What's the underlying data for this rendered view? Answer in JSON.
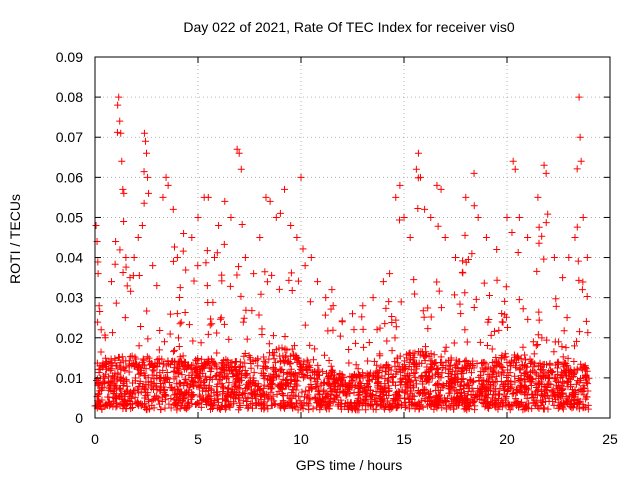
{
  "chart_data": {
    "type": "scatter",
    "title": "Day 022 of 2021, Rate Of TEC Index for receiver vis0",
    "xlabel": "GPS time / hours",
    "ylabel": "ROTI / TECUs",
    "xlim": [
      0,
      25
    ],
    "ylim": [
      0,
      0.09
    ],
    "x_ticks": [
      0,
      5,
      10,
      15,
      20,
      25
    ],
    "y_ticks": [
      0,
      0.01,
      0.02,
      0.03,
      0.04,
      0.05,
      0.06,
      0.07,
      0.08,
      0.09
    ],
    "x_tick_labels": [
      "0",
      "5",
      "10",
      "15",
      "20",
      "25"
    ],
    "y_tick_labels": [
      "0",
      "0.01",
      "0.02",
      "0.03",
      "0.04",
      "0.05",
      "0.06",
      "0.07",
      "0.08",
      "0.09"
    ],
    "grid": true,
    "marker": "+",
    "color": "#ff0000",
    "series": [
      {
        "name": "ROTI",
        "points": [
          [
            0.05,
            0.048
          ],
          [
            0.1,
            0.044
          ],
          [
            0.15,
            0.036
          ],
          [
            0.2,
            0.028
          ],
          [
            0.3,
            0.022
          ],
          [
            0.5,
            0.02
          ],
          [
            0.8,
            0.034
          ],
          [
            1.0,
            0.044
          ],
          [
            1.1,
            0.078
          ],
          [
            1.15,
            0.08
          ],
          [
            1.2,
            0.074
          ],
          [
            1.25,
            0.071
          ],
          [
            1.3,
            0.064
          ],
          [
            1.35,
            0.057
          ],
          [
            1.4,
            0.056
          ],
          [
            1.5,
            0.04
          ],
          [
            1.7,
            0.035
          ],
          [
            1.9,
            0.04
          ],
          [
            2.1,
            0.045
          ],
          [
            2.3,
            0.048
          ],
          [
            2.4,
            0.071
          ],
          [
            2.45,
            0.069
          ],
          [
            2.5,
            0.066
          ],
          [
            2.55,
            0.06
          ],
          [
            2.6,
            0.056
          ],
          [
            2.8,
            0.038
          ],
          [
            3.0,
            0.033
          ],
          [
            3.3,
            0.055
          ],
          [
            3.45,
            0.06
          ],
          [
            3.55,
            0.058
          ],
          [
            3.8,
            0.052
          ],
          [
            4.0,
            0.04
          ],
          [
            4.3,
            0.046
          ],
          [
            4.7,
            0.045
          ],
          [
            5.0,
            0.05
          ],
          [
            5.3,
            0.055
          ],
          [
            5.5,
            0.055
          ],
          [
            5.8,
            0.04
          ],
          [
            6.0,
            0.048
          ],
          [
            6.3,
            0.054
          ],
          [
            6.6,
            0.05
          ],
          [
            6.9,
            0.067
          ],
          [
            7.0,
            0.066
          ],
          [
            7.1,
            0.062
          ],
          [
            7.3,
            0.04
          ],
          [
            7.7,
            0.036
          ],
          [
            8.0,
            0.045
          ],
          [
            8.3,
            0.055
          ],
          [
            8.5,
            0.054
          ],
          [
            8.8,
            0.05
          ],
          [
            9.0,
            0.051
          ],
          [
            9.2,
            0.057
          ],
          [
            9.5,
            0.048
          ],
          [
            9.8,
            0.045
          ],
          [
            10.0,
            0.06
          ],
          [
            10.2,
            0.038
          ],
          [
            10.5,
            0.04
          ],
          [
            10.8,
            0.034
          ],
          [
            11.2,
            0.03
          ],
          [
            11.5,
            0.032
          ],
          [
            12.0,
            0.024
          ],
          [
            12.5,
            0.026
          ],
          [
            13.0,
            0.028
          ],
          [
            13.5,
            0.03
          ],
          [
            14.0,
            0.034
          ],
          [
            14.3,
            0.036
          ],
          [
            14.6,
            0.055
          ],
          [
            14.8,
            0.058
          ],
          [
            15.0,
            0.05
          ],
          [
            15.3,
            0.045
          ],
          [
            15.6,
            0.062
          ],
          [
            15.7,
            0.066
          ],
          [
            15.8,
            0.06
          ],
          [
            16.0,
            0.052
          ],
          [
            16.3,
            0.05
          ],
          [
            16.6,
            0.058
          ],
          [
            16.8,
            0.057
          ],
          [
            17.0,
            0.045
          ],
          [
            17.5,
            0.04
          ],
          [
            18.0,
            0.055
          ],
          [
            18.4,
            0.061
          ],
          [
            18.6,
            0.05
          ],
          [
            19.0,
            0.045
          ],
          [
            19.5,
            0.042
          ],
          [
            20.0,
            0.05
          ],
          [
            20.3,
            0.064
          ],
          [
            20.4,
            0.062
          ],
          [
            20.6,
            0.05
          ],
          [
            21.0,
            0.045
          ],
          [
            21.5,
            0.055
          ],
          [
            21.8,
            0.063
          ],
          [
            21.9,
            0.061
          ],
          [
            22.3,
            0.04
          ],
          [
            22.7,
            0.035
          ],
          [
            23.0,
            0.04
          ],
          [
            23.3,
            0.045
          ],
          [
            23.5,
            0.08
          ],
          [
            23.55,
            0.07
          ],
          [
            23.6,
            0.064
          ],
          [
            23.7,
            0.05
          ],
          [
            23.9,
            0.04
          ]
        ],
        "baseline": [
          [
            0.0,
            0.012
          ],
          [
            1.0,
            0.013
          ],
          [
            2.0,
            0.014
          ],
          [
            3.0,
            0.013
          ],
          [
            4.0,
            0.012
          ],
          [
            5.0,
            0.013
          ],
          [
            6.0,
            0.013
          ],
          [
            7.0,
            0.012
          ],
          [
            8.0,
            0.014
          ],
          [
            9.0,
            0.016
          ],
          [
            10.0,
            0.013
          ],
          [
            11.0,
            0.011
          ],
          [
            12.0,
            0.009
          ],
          [
            13.0,
            0.009
          ],
          [
            14.0,
            0.011
          ],
          [
            15.0,
            0.014
          ],
          [
            16.0,
            0.015
          ],
          [
            17.0,
            0.013
          ],
          [
            18.0,
            0.013
          ],
          [
            19.0,
            0.012
          ],
          [
            20.0,
            0.014
          ],
          [
            21.0,
            0.013
          ],
          [
            22.0,
            0.012
          ],
          [
            23.0,
            0.012
          ],
          [
            24.0,
            0.011
          ]
        ]
      }
    ]
  }
}
